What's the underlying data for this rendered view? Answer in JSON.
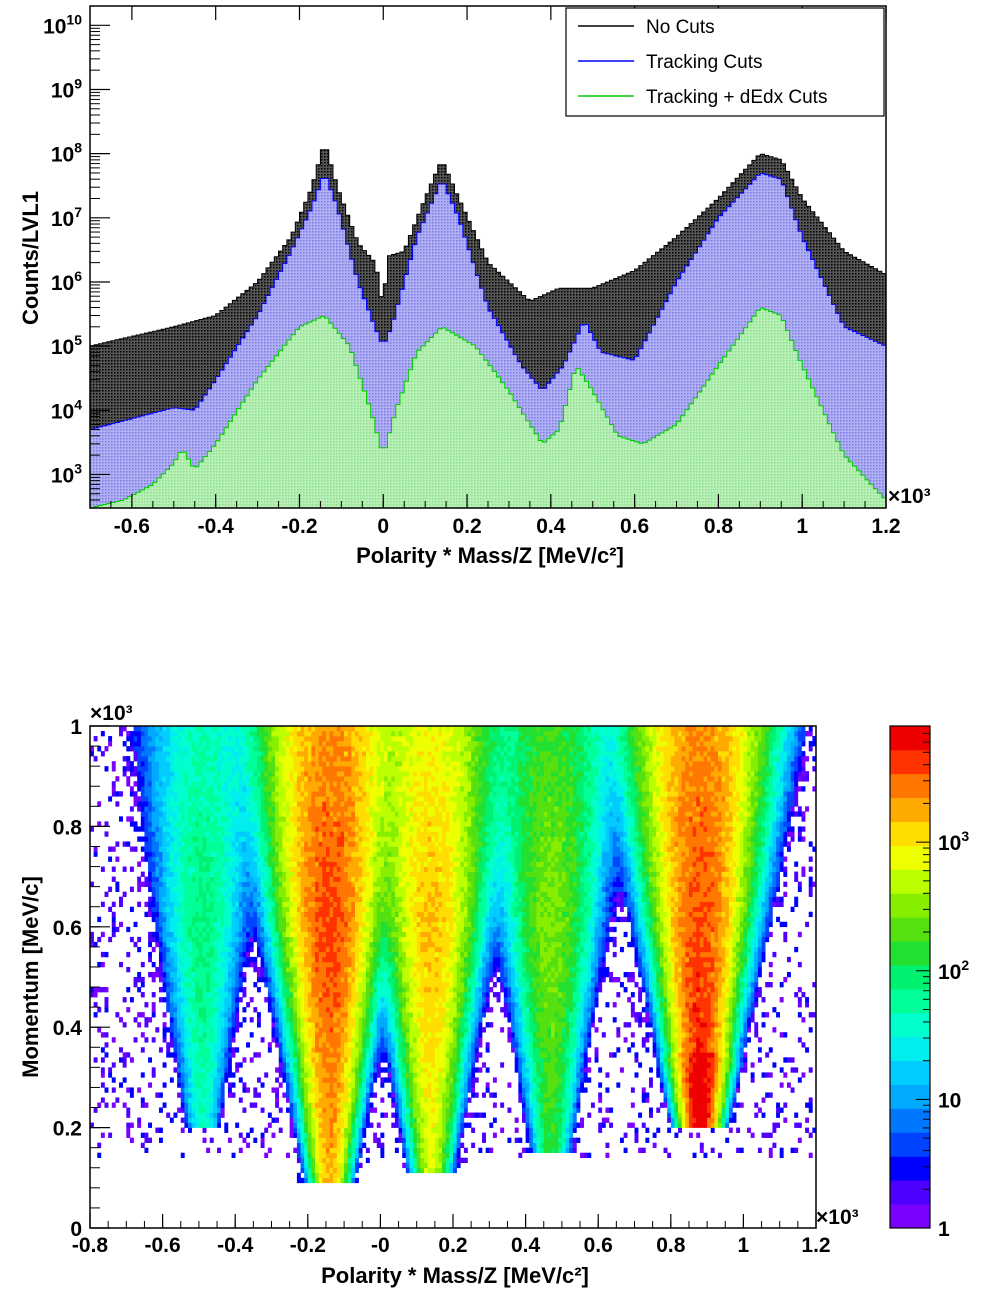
{
  "chart_data": [
    {
      "type": "area",
      "xlabel": "Polarity * Mass/Z [MeV/c²]",
      "ylabel": "Counts/LVL1",
      "x_multiplier": "×10³",
      "xlim": [
        -0.7,
        1.2
      ],
      "ylim": [
        300,
        20000000000
      ],
      "log_y": true,
      "x_ticks": [
        "-0.6",
        "-0.4",
        "-0.2",
        "0",
        "0.2",
        "0.4",
        "0.6",
        "0.8",
        "1",
        "1.2"
      ],
      "y_ticks": [
        {
          "base": "10",
          "exp": "3"
        },
        {
          "base": "10",
          "exp": "4"
        },
        {
          "base": "10",
          "exp": "5"
        },
        {
          "base": "10",
          "exp": "6"
        },
        {
          "base": "10",
          "exp": "7"
        },
        {
          "base": "10",
          "exp": "8"
        },
        {
          "base": "10",
          "exp": "9"
        },
        {
          "base": "10",
          "exp": "10"
        }
      ],
      "legend_position": "top-right",
      "series": [
        {
          "name": "No Cuts",
          "color": "#000000",
          "points": [
            [
              -0.7,
              100000
            ],
            [
              -0.5,
              200000
            ],
            [
              -0.4,
              300000
            ],
            [
              -0.3,
              1000000
            ],
            [
              -0.22,
              5000000
            ],
            [
              -0.17,
              30000000
            ],
            [
              -0.14,
              150000000
            ],
            [
              -0.11,
              30000000
            ],
            [
              -0.06,
              4000000
            ],
            [
              -0.02,
              2000000
            ],
            [
              -0.01,
              1000000
            ],
            [
              0.0,
              350000
            ],
            [
              0.01,
              2500000
            ],
            [
              0.05,
              3000000
            ],
            [
              0.1,
              20000000
            ],
            [
              0.14,
              80000000
            ],
            [
              0.18,
              20000000
            ],
            [
              0.25,
              2000000
            ],
            [
              0.35,
              500000
            ],
            [
              0.42,
              800000
            ],
            [
              0.5,
              800000
            ],
            [
              0.6,
              1500000
            ],
            [
              0.7,
              5000000
            ],
            [
              0.8,
              20000000
            ],
            [
              0.9,
              100000000
            ],
            [
              0.95,
              80000000
            ],
            [
              1.0,
              20000000
            ],
            [
              1.1,
              3000000
            ],
            [
              1.2,
              1300000
            ]
          ]
        },
        {
          "name": "Tracking Cuts",
          "color": "#0000ff",
          "points": [
            [
              -0.7,
              5000
            ],
            [
              -0.5,
              11000
            ],
            [
              -0.45,
              10000
            ],
            [
              -0.4,
              30000
            ],
            [
              -0.3,
              300000
            ],
            [
              -0.22,
              3000000
            ],
            [
              -0.17,
              15000000
            ],
            [
              -0.14,
              50000000
            ],
            [
              -0.11,
              15000000
            ],
            [
              -0.06,
              1000000
            ],
            [
              -0.02,
              200000
            ],
            [
              0.0,
              100000
            ],
            [
              0.02,
              200000
            ],
            [
              0.08,
              5000000
            ],
            [
              0.14,
              40000000
            ],
            [
              0.18,
              10000000
            ],
            [
              0.25,
              400000
            ],
            [
              0.33,
              50000
            ],
            [
              0.38,
              20000
            ],
            [
              0.43,
              50000
            ],
            [
              0.48,
              250000
            ],
            [
              0.52,
              80000
            ],
            [
              0.6,
              60000
            ],
            [
              0.7,
              1000000
            ],
            [
              0.8,
              10000000
            ],
            [
              0.9,
              50000000
            ],
            [
              0.95,
              40000000
            ],
            [
              1.0,
              5000000
            ],
            [
              1.1,
              200000
            ],
            [
              1.2,
              100000
            ]
          ]
        },
        {
          "name": "Tracking + dEdx Cuts",
          "color": "#00cc00",
          "points": [
            [
              -0.7,
              300
            ],
            [
              -0.62,
              400
            ],
            [
              -0.55,
              700
            ],
            [
              -0.5,
              1500
            ],
            [
              -0.48,
              2500
            ],
            [
              -0.45,
              1200
            ],
            [
              -0.4,
              3000
            ],
            [
              -0.3,
              30000
            ],
            [
              -0.2,
              200000
            ],
            [
              -0.14,
              300000
            ],
            [
              -0.08,
              100000
            ],
            [
              -0.03,
              10000
            ],
            [
              0.0,
              2000
            ],
            [
              0.03,
              10000
            ],
            [
              0.08,
              80000
            ],
            [
              0.14,
              200000
            ],
            [
              0.22,
              100000
            ],
            [
              0.3,
              20000
            ],
            [
              0.38,
              3000
            ],
            [
              0.42,
              5000
            ],
            [
              0.46,
              50000
            ],
            [
              0.5,
              20000
            ],
            [
              0.56,
              4000
            ],
            [
              0.62,
              3000
            ],
            [
              0.7,
              6000
            ],
            [
              0.8,
              50000
            ],
            [
              0.9,
              400000
            ],
            [
              0.95,
              300000
            ],
            [
              1.0,
              50000
            ],
            [
              1.1,
              2000
            ],
            [
              1.2,
              400
            ]
          ]
        }
      ]
    },
    {
      "type": "heatmap",
      "xlabel": "Polarity * Mass/Z  [MeV/c²]",
      "ylabel": "Momentum [MeV/c]",
      "x_multiplier": "×10³",
      "y_multiplier": "×10³",
      "xlim": [
        -0.8,
        1.2
      ],
      "ylim": [
        0,
        1
      ],
      "x_ticks": [
        "-0.8",
        "-0.6",
        "-0.4",
        "-0.2",
        "-0",
        "0.2",
        "0.4",
        "0.6",
        "0.8",
        "1",
        "1.2"
      ],
      "y_ticks": [
        "0",
        "0.2",
        "0.4",
        "0.6",
        "0.8",
        "1"
      ],
      "colorbar": {
        "scale": "log",
        "range": [
          1,
          8000
        ],
        "labels": [
          {
            "base": "1",
            "exp": ""
          },
          {
            "base": "10",
            "exp": ""
          },
          {
            "base": "10",
            "exp": "2"
          },
          {
            "base": "10",
            "exp": "3"
          }
        ],
        "colors": [
          "#7a00ff",
          "#4d00ff",
          "#0000ff",
          "#0044ff",
          "#0077ff",
          "#00aaff",
          "#00ccff",
          "#00eeee",
          "#00ffcc",
          "#00ff99",
          "#00f070",
          "#22e030",
          "#55e010",
          "#88ee00",
          "#bbff00",
          "#eeff00",
          "#ffdd00",
          "#ffaa00",
          "#ff7700",
          "#ff3300",
          "#ee0000"
        ]
      },
      "bands": [
        {
          "center": -0.49,
          "p_min": 0.2,
          "peak_counts": 80
        },
        {
          "center": -0.14,
          "p_min": 0.09,
          "peak_counts": 4000
        },
        {
          "center": 0.14,
          "p_min": 0.11,
          "peak_counts": 1500
        },
        {
          "center": 0.47,
          "p_min": 0.15,
          "peak_counts": 300
        },
        {
          "center": 0.88,
          "p_min": 0.2,
          "peak_counts": 8000
        }
      ]
    }
  ]
}
